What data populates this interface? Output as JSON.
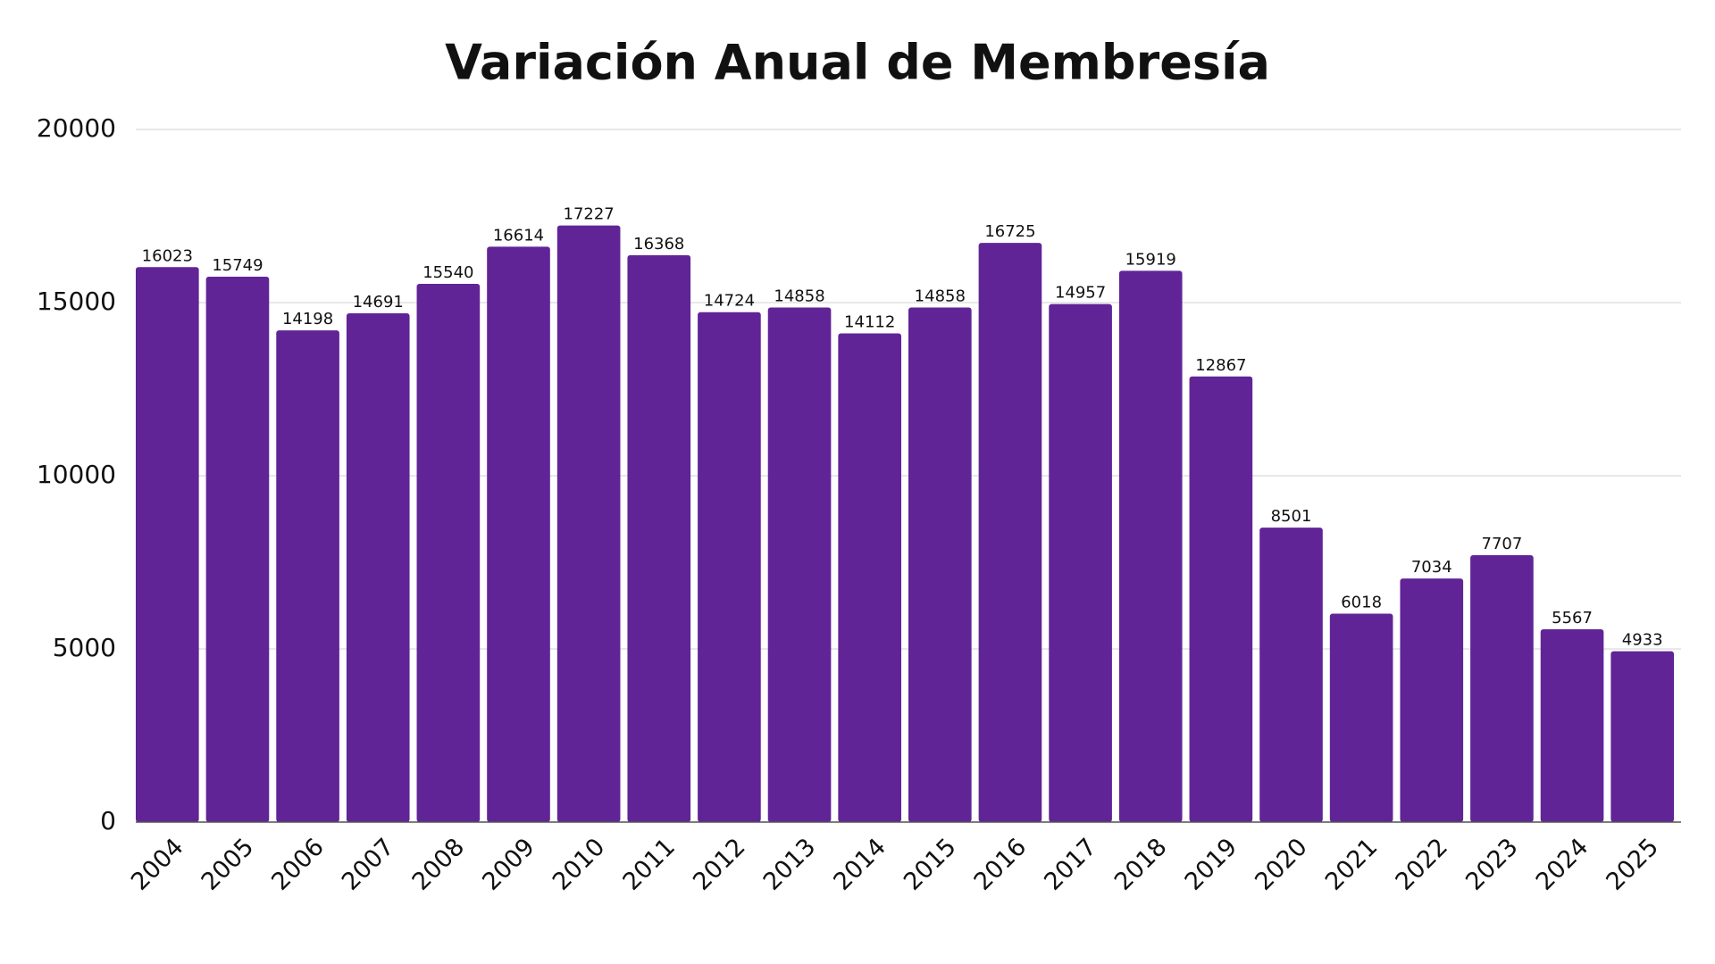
{
  "chart_data": {
    "type": "bar",
    "title": "Variación Anual de Membresía",
    "categories": [
      "2004",
      "2005",
      "2006",
      "2007",
      "2008",
      "2009",
      "2010",
      "2011",
      "2012",
      "2013",
      "2014",
      "2015",
      "2016",
      "2017",
      "2018",
      "2019",
      "2020",
      "2021",
      "2022",
      "2023",
      "2024",
      "2025"
    ],
    "values": [
      16023,
      15749,
      14198,
      14691,
      15540,
      16614,
      17227,
      16368,
      14724,
      14858,
      14112,
      14858,
      16725,
      14957,
      15919,
      12867,
      8501,
      6018,
      7034,
      7707,
      5567,
      4933
    ],
    "color": "#612497",
    "ylim": [
      0,
      20000
    ],
    "yticks": [
      0,
      5000,
      10000,
      15000,
      20000
    ],
    "grid": true
  }
}
